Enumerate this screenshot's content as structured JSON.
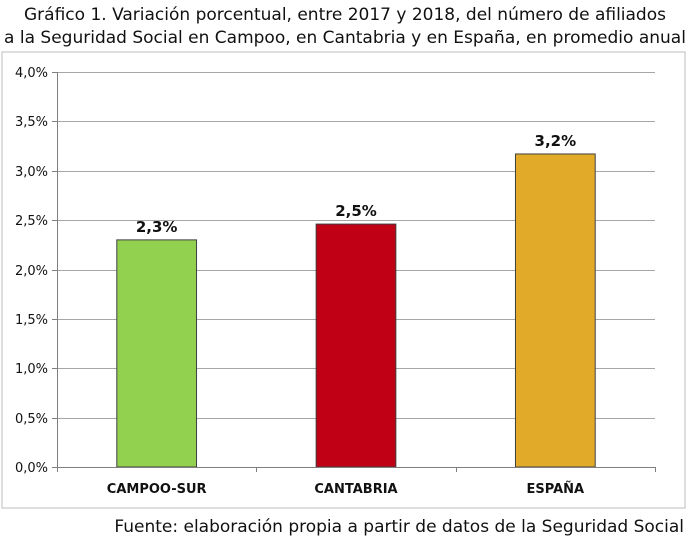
{
  "chart_data": {
    "type": "bar",
    "title_lines": [
      "Gráfico 1. Variación porcentual, entre 2017 y 2018, del número de afiliados",
      "a la Seguridad Social en Campoo, en Cantabria y en España, en promedio anual"
    ],
    "categories": [
      "CAMPOO-SUR",
      "CANTABRIA",
      "ESPAÑA"
    ],
    "values": [
      2.3,
      2.46,
      3.17
    ],
    "data_labels": [
      "2,3%",
      "2,5%",
      "3,2%"
    ],
    "colors": [
      "#92d050",
      "#c00015",
      "#e1aa28"
    ],
    "ylim": [
      0,
      4
    ],
    "yticks": [
      0,
      0.5,
      1,
      1.5,
      2,
      2.5,
      3,
      3.5,
      4
    ],
    "ytick_labels": [
      "0,0%",
      "0,5%",
      "1,0%",
      "1,5%",
      "2,0%",
      "2,5%",
      "3,0%",
      "3,5%",
      "4,0%"
    ],
    "grid": true,
    "legend": "none",
    "source": "Fuente: elaboración propia a partir de datos de la Seguridad Social"
  }
}
